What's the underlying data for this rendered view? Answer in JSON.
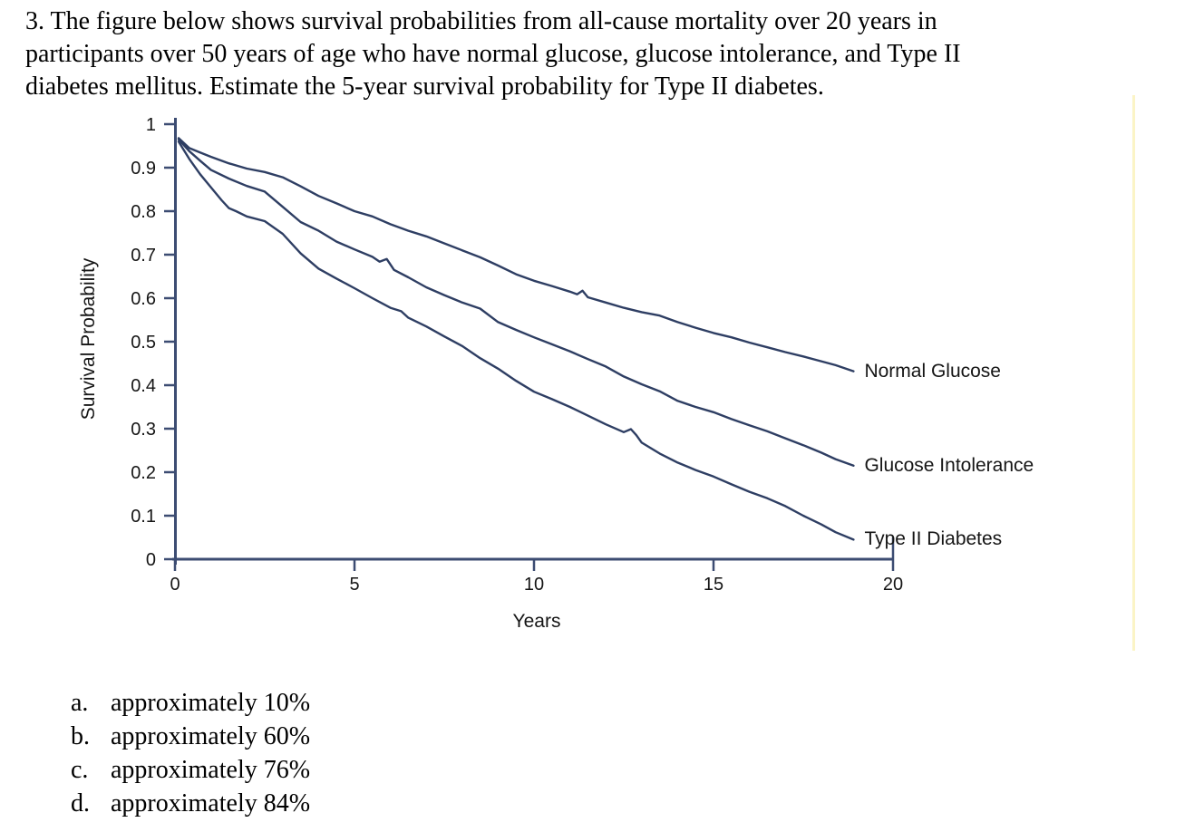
{
  "question": {
    "lines": [
      "3. The figure below shows survival probabilities from all-cause mortality over 20 years in",
      "participants over 50 years of age who have normal glucose, glucose intolerance, and Type II",
      "diabetes mellitus. Estimate the 5-year survival probability for Type II diabetes."
    ]
  },
  "chart_data": {
    "type": "line",
    "title": "",
    "xlabel": "Years",
    "ylabel": "Survival Probability",
    "xlim": [
      0,
      20
    ],
    "ylim": [
      0,
      1
    ],
    "grid": false,
    "legend_position": "labels-at-curve-ends-right",
    "line_color": "#2e3e63",
    "axis_color": "#3c4c72",
    "xticks": [
      0,
      5,
      10,
      15,
      20
    ],
    "xtick_labels": [
      "0",
      "5",
      "10",
      "15",
      "20"
    ],
    "yticks": [
      1,
      0.9,
      0.8,
      0.7,
      0.6,
      0.5,
      0.4,
      0.3,
      0.2,
      0.1,
      0
    ],
    "ytick_labels": [
      "1",
      "0.9",
      "0.8",
      "0.7",
      "0.6",
      "0.5",
      "0.4",
      "0.3",
      "0.2",
      "0.1",
      "0"
    ],
    "series": [
      {
        "name": "Normal Glucose",
        "points": [
          [
            0.1,
            0.968
          ],
          [
            0.4,
            0.945
          ],
          [
            0.7,
            0.935
          ],
          [
            1,
            0.925
          ],
          [
            1.5,
            0.91
          ],
          [
            2,
            0.898
          ],
          [
            2.5,
            0.89
          ],
          [
            3,
            0.878
          ],
          [
            3.5,
            0.857
          ],
          [
            4,
            0.835
          ],
          [
            4.5,
            0.818
          ],
          [
            5,
            0.8
          ],
          [
            5.5,
            0.788
          ],
          [
            6,
            0.77
          ],
          [
            6.5,
            0.755
          ],
          [
            7,
            0.742
          ],
          [
            7.5,
            0.726
          ],
          [
            8,
            0.71
          ],
          [
            8.5,
            0.694
          ],
          [
            9,
            0.675
          ],
          [
            9.5,
            0.655
          ],
          [
            10,
            0.64
          ],
          [
            10.5,
            0.628
          ],
          [
            11,
            0.615
          ],
          [
            11.2,
            0.609
          ],
          [
            11.35,
            0.617
          ],
          [
            11.5,
            0.602
          ],
          [
            12,
            0.59
          ],
          [
            12.5,
            0.578
          ],
          [
            13,
            0.568
          ],
          [
            13.5,
            0.56
          ],
          [
            14,
            0.545
          ],
          [
            14.5,
            0.532
          ],
          [
            15,
            0.52
          ],
          [
            15.5,
            0.51
          ],
          [
            16,
            0.498
          ],
          [
            16.5,
            0.487
          ],
          [
            17,
            0.476
          ],
          [
            17.5,
            0.466
          ],
          [
            18,
            0.455
          ],
          [
            18.4,
            0.446
          ],
          [
            18.9,
            0.432
          ]
        ]
      },
      {
        "name": "Glucose Intolerance",
        "points": [
          [
            0.1,
            0.965
          ],
          [
            0.4,
            0.938
          ],
          [
            0.7,
            0.916
          ],
          [
            1,
            0.895
          ],
          [
            1.5,
            0.875
          ],
          [
            2,
            0.858
          ],
          [
            2.5,
            0.845
          ],
          [
            3,
            0.81
          ],
          [
            3.5,
            0.775
          ],
          [
            4,
            0.755
          ],
          [
            4.5,
            0.73
          ],
          [
            5,
            0.712
          ],
          [
            5.5,
            0.695
          ],
          [
            5.7,
            0.684
          ],
          [
            5.9,
            0.69
          ],
          [
            6.1,
            0.665
          ],
          [
            6.5,
            0.648
          ],
          [
            7,
            0.625
          ],
          [
            7.5,
            0.607
          ],
          [
            8,
            0.59
          ],
          [
            8.5,
            0.576
          ],
          [
            9,
            0.545
          ],
          [
            9.5,
            0.527
          ],
          [
            10,
            0.51
          ],
          [
            10.5,
            0.494
          ],
          [
            11,
            0.478
          ],
          [
            11.5,
            0.46
          ],
          [
            12,
            0.443
          ],
          [
            12.5,
            0.42
          ],
          [
            13,
            0.402
          ],
          [
            13.5,
            0.386
          ],
          [
            14,
            0.364
          ],
          [
            14.5,
            0.35
          ],
          [
            15,
            0.338
          ],
          [
            15.5,
            0.322
          ],
          [
            16,
            0.308
          ],
          [
            16.5,
            0.294
          ],
          [
            17,
            0.278
          ],
          [
            17.5,
            0.262
          ],
          [
            18,
            0.245
          ],
          [
            18.4,
            0.23
          ],
          [
            18.9,
            0.215
          ]
        ]
      },
      {
        "name": "Type II Diabetes",
        "points": [
          [
            0.1,
            0.96
          ],
          [
            0.4,
            0.92
          ],
          [
            0.7,
            0.885
          ],
          [
            1,
            0.855
          ],
          [
            1.3,
            0.825
          ],
          [
            1.5,
            0.807
          ],
          [
            1.7,
            0.8
          ],
          [
            2,
            0.788
          ],
          [
            2.5,
            0.777
          ],
          [
            3,
            0.748
          ],
          [
            3.5,
            0.703
          ],
          [
            4,
            0.668
          ],
          [
            4.5,
            0.645
          ],
          [
            5,
            0.623
          ],
          [
            5.5,
            0.6
          ],
          [
            6,
            0.578
          ],
          [
            6.3,
            0.57
          ],
          [
            6.5,
            0.555
          ],
          [
            7,
            0.535
          ],
          [
            7.5,
            0.512
          ],
          [
            8,
            0.49
          ],
          [
            8.5,
            0.462
          ],
          [
            9,
            0.438
          ],
          [
            9.5,
            0.41
          ],
          [
            10,
            0.385
          ],
          [
            10.5,
            0.368
          ],
          [
            11,
            0.35
          ],
          [
            11.5,
            0.33
          ],
          [
            12,
            0.31
          ],
          [
            12.5,
            0.292
          ],
          [
            12.7,
            0.299
          ],
          [
            12.85,
            0.285
          ],
          [
            13,
            0.268
          ],
          [
            13.5,
            0.243
          ],
          [
            14,
            0.222
          ],
          [
            14.5,
            0.205
          ],
          [
            15,
            0.19
          ],
          [
            15.5,
            0.172
          ],
          [
            16,
            0.155
          ],
          [
            16.5,
            0.14
          ],
          [
            17,
            0.122
          ],
          [
            17.5,
            0.1
          ],
          [
            18,
            0.08
          ],
          [
            18.4,
            0.062
          ],
          [
            18.9,
            0.045
          ]
        ]
      }
    ]
  },
  "options": [
    {
      "letter": "a.",
      "text": "approximately 10%"
    },
    {
      "letter": "b.",
      "text": "approximately 60%"
    },
    {
      "letter": "c.",
      "text": "approximately 76%"
    },
    {
      "letter": "d.",
      "text": "approximately 84%"
    }
  ],
  "decor": {
    "highlight_strip_color": "#fbf4c6"
  }
}
